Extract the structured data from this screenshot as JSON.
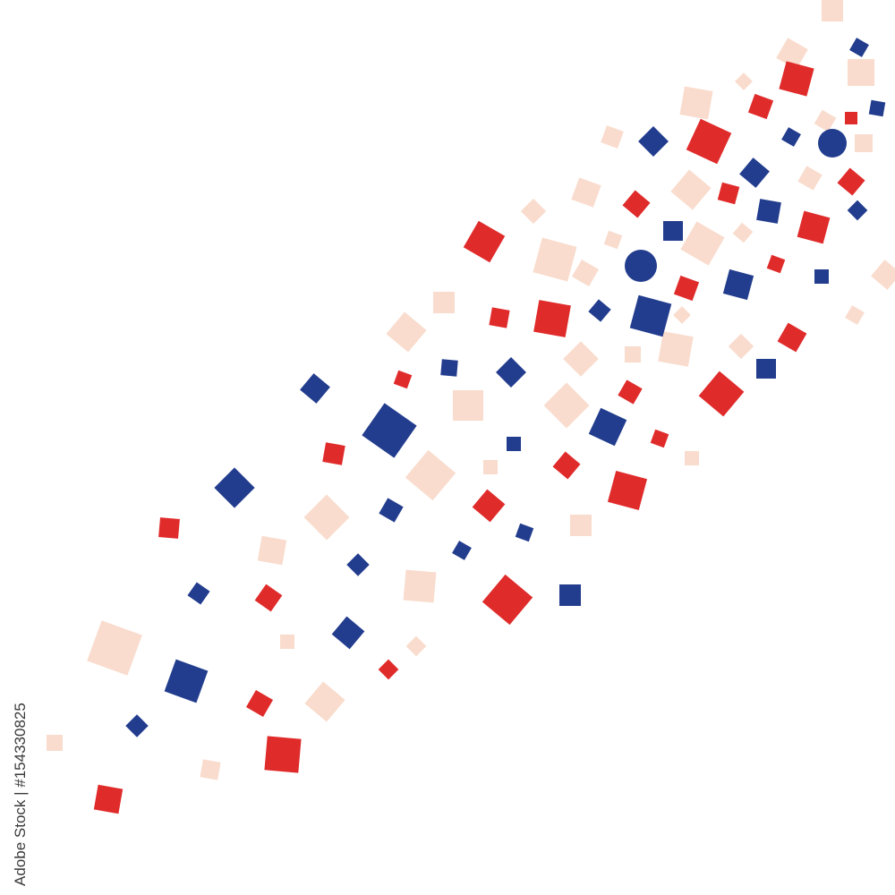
{
  "watermark": "Adobe Stock | #154330825"
}
